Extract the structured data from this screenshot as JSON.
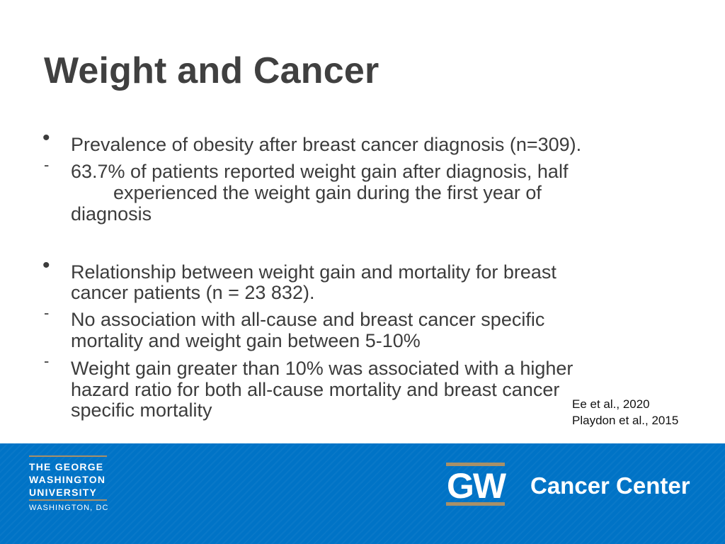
{
  "slide": {
    "title": "Weight and Cancer",
    "section1": {
      "bullet": "•",
      "text": "Prevalence of obesity after breast cancer diagnosis (n=309).",
      "sub_marker": "-",
      "sub_lines": [
        "63.7% of patients reported weight gain after diagnosis, half",
        "experienced the weight gain during the first year of",
        "diagnosis"
      ]
    },
    "section2": {
      "bullet": "•",
      "lines": [
        "Relationship between weight gain and mortality for breast",
        "cancer patients (n = 23 832)."
      ],
      "sub1_marker": "-",
      "sub1_lines": [
        "No association with all-cause and breast cancer specific",
        "mortality and weight gain between 5-10%"
      ],
      "sub2_marker": "-",
      "sub2_lines": [
        "Weight gain greater than 10% was associated with a higher",
        "hazard ratio for both all-cause mortality and breast cancer",
        "specific mortality"
      ]
    },
    "references": [
      "Ee et al., 2020",
      "Playdon et al., 2015"
    ]
  },
  "footer": {
    "university_lines": [
      "THE GEORGE",
      "WASHINGTON",
      "UNIVERSITY"
    ],
    "university_location": "WASHINGTON, DC",
    "gw_logo": "GW",
    "center_name": "Cancer Center",
    "colors": {
      "band": "#0073c6",
      "gold": "#a89068",
      "text": "#ffffff"
    }
  }
}
